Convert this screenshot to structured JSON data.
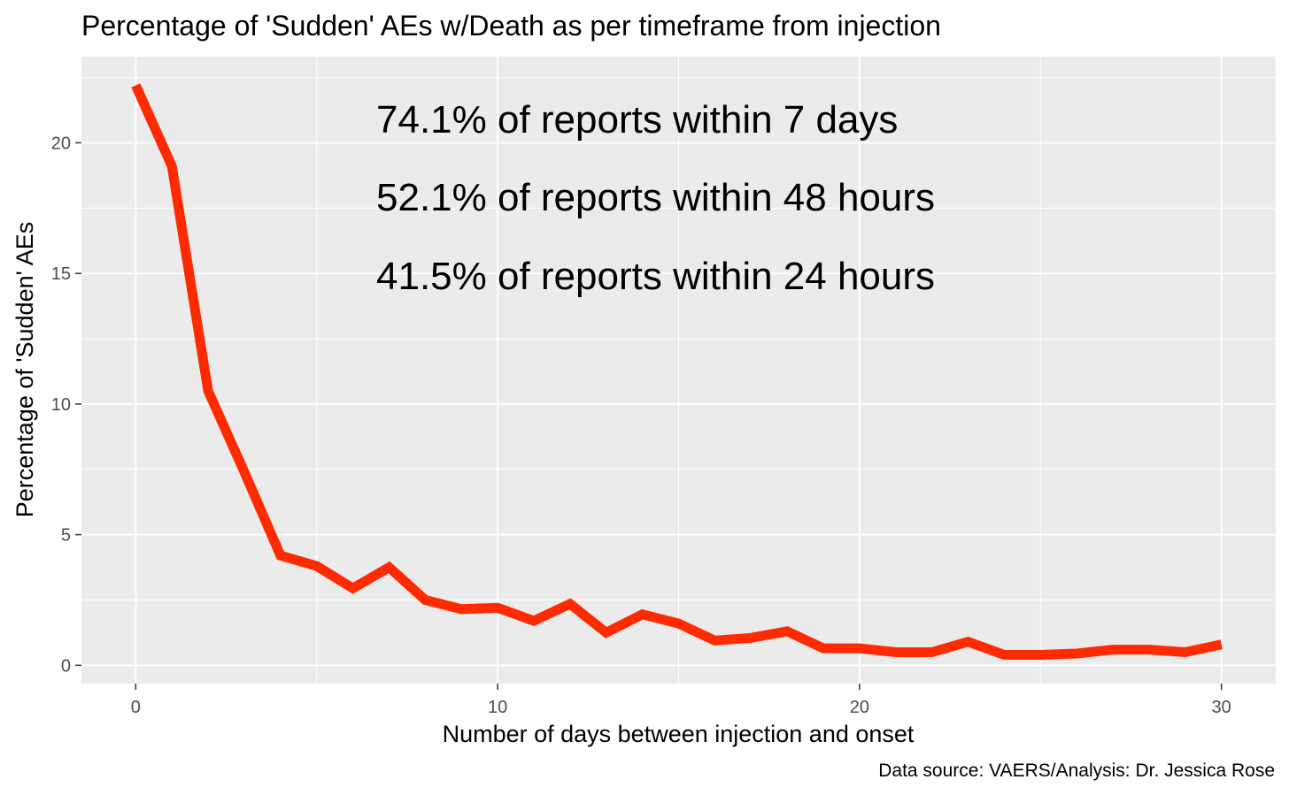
{
  "chart_data": {
    "type": "line",
    "title": "Percentage of 'Sudden' AEs w/Death as per timeframe from injection",
    "xlabel": "Number of days between injection and onset",
    "ylabel": "Percentage of 'Sudden' AEs",
    "caption": "Data source: VAERS/Analysis: Dr. Jessica Rose",
    "annotations": [
      "74.1% of reports within 7 days",
      "52.1% of reports within 48 hours",
      "41.5% of reports within 24 hours"
    ],
    "xlim": [
      -1.5,
      31.5
    ],
    "ylim": [
      -0.7,
      23.3
    ],
    "x_ticks": [
      0,
      10,
      20,
      30
    ],
    "x_tick_labels": [
      "0",
      "10",
      "20",
      "30"
    ],
    "y_ticks": [
      0,
      5,
      10,
      15,
      20
    ],
    "y_tick_labels": [
      "0",
      "5",
      "10",
      "15",
      "20"
    ],
    "grid": true,
    "panel_background": "#ebebeb",
    "series": [
      {
        "color": "#ff2a00",
        "x": [
          0,
          1,
          2,
          3,
          4,
          5,
          6,
          7,
          8,
          9,
          10,
          11,
          12,
          13,
          14,
          15,
          16,
          17,
          18,
          19,
          20,
          21,
          22,
          23,
          24,
          25,
          26,
          27,
          28,
          29,
          30
        ],
        "y": [
          22.2,
          19.1,
          10.5,
          7.4,
          4.2,
          3.8,
          2.95,
          3.75,
          2.5,
          2.15,
          2.2,
          1.7,
          2.35,
          1.25,
          1.95,
          1.6,
          0.95,
          1.05,
          1.3,
          0.65,
          0.65,
          0.5,
          0.5,
          0.9,
          0.4,
          0.4,
          0.45,
          0.6,
          0.6,
          0.5,
          0.8
        ]
      }
    ]
  }
}
